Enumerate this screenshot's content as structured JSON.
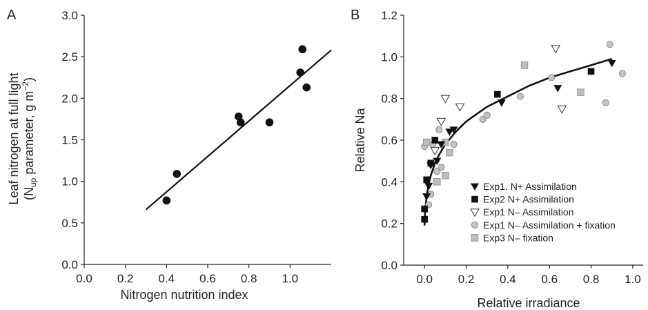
{
  "chart_data": [
    {
      "type": "scatter",
      "panel": "A",
      "title": "",
      "xlabel": "Nitrogen nutrition index",
      "ylabel_line1": "Leaf nitrogen at full light",
      "ylabel_line2_pre": "(N",
      "ylabel_line2_sub": "up",
      "ylabel_line2_mid": " parameter, g m",
      "ylabel_line2_sup": "−2",
      "ylabel_line2_post": ")",
      "xlim": [
        0.0,
        1.2
      ],
      "ylim": [
        0.0,
        3.0
      ],
      "xticks": [
        "0.0",
        "0.2",
        "0.4",
        "0.6",
        "0.8",
        "1.0"
      ],
      "yticks": [
        "0.0",
        "0.5",
        "1.0",
        "1.5",
        "2.0",
        "2.5",
        "3.0"
      ],
      "points": [
        {
          "x": 0.4,
          "y": 0.77
        },
        {
          "x": 0.45,
          "y": 1.09
        },
        {
          "x": 0.75,
          "y": 1.78
        },
        {
          "x": 0.76,
          "y": 1.71
        },
        {
          "x": 0.9,
          "y": 1.71
        },
        {
          "x": 1.05,
          "y": 2.31
        },
        {
          "x": 1.06,
          "y": 2.59
        },
        {
          "x": 1.08,
          "y": 2.13
        }
      ],
      "fit_line": [
        {
          "x": 0.3,
          "y": 0.66
        },
        {
          "x": 1.2,
          "y": 2.58
        }
      ]
    },
    {
      "type": "scatter",
      "panel": "B",
      "title": "",
      "xlabel": "Relative irradiance",
      "ylabel": "Relative Na",
      "xlim": [
        -0.1,
        1.05
      ],
      "ylim": [
        0.0,
        1.2
      ],
      "xticks": [
        "0.0",
        "0.2",
        "0.4",
        "0.6",
        "0.8",
        "1.0"
      ],
      "yticks": [
        "0.0",
        "0.2",
        "0.4",
        "0.6",
        "0.8",
        "1.0",
        "1.2"
      ],
      "legend_position": "bottom-right",
      "series": [
        {
          "name": "Exp1. N+ Assimilation",
          "marker": "triangle-down-filled",
          "points": [
            {
              "x": 0.01,
              "y": 0.33
            },
            {
              "x": 0.02,
              "y": 0.38
            },
            {
              "x": 0.03,
              "y": 0.48
            },
            {
              "x": 0.06,
              "y": 0.5
            },
            {
              "x": 0.08,
              "y": 0.58
            },
            {
              "x": 0.12,
              "y": 0.64
            },
            {
              "x": 0.14,
              "y": 0.65
            },
            {
              "x": 0.37,
              "y": 0.78
            },
            {
              "x": 0.64,
              "y": 0.85
            },
            {
              "x": 0.9,
              "y": 0.97
            }
          ]
        },
        {
          "name": "Exp2 N+ Assimilation",
          "marker": "square-filled",
          "points": [
            {
              "x": 0.0,
              "y": 0.22
            },
            {
              "x": 0.0,
              "y": 0.27
            },
            {
              "x": 0.01,
              "y": 0.41
            },
            {
              "x": 0.03,
              "y": 0.49
            },
            {
              "x": 0.05,
              "y": 0.6
            },
            {
              "x": 0.35,
              "y": 0.82
            },
            {
              "x": 0.8,
              "y": 0.93
            }
          ]
        },
        {
          "name": "Exp1 N– Assimilation",
          "marker": "triangle-down-open",
          "points": [
            {
              "x": 0.05,
              "y": 0.55
            },
            {
              "x": 0.08,
              "y": 0.69
            },
            {
              "x": 0.1,
              "y": 0.8
            },
            {
              "x": 0.17,
              "y": 0.76
            },
            {
              "x": 0.63,
              "y": 1.04
            },
            {
              "x": 0.66,
              "y": 0.75
            }
          ]
        },
        {
          "name": "Exp1 N– Assimilation + fixation",
          "marker": "circle-gray",
          "points": [
            {
              "x": 0.0,
              "y": 0.57
            },
            {
              "x": 0.02,
              "y": 0.29
            },
            {
              "x": 0.03,
              "y": 0.34
            },
            {
              "x": 0.04,
              "y": 0.58
            },
            {
              "x": 0.06,
              "y": 0.45
            },
            {
              "x": 0.07,
              "y": 0.65
            },
            {
              "x": 0.08,
              "y": 0.47
            },
            {
              "x": 0.14,
              "y": 0.58
            },
            {
              "x": 0.28,
              "y": 0.7
            },
            {
              "x": 0.3,
              "y": 0.72
            },
            {
              "x": 0.46,
              "y": 0.81
            },
            {
              "x": 0.61,
              "y": 0.9
            },
            {
              "x": 0.87,
              "y": 0.78
            },
            {
              "x": 0.89,
              "y": 1.06
            },
            {
              "x": 0.95,
              "y": 0.92
            }
          ]
        },
        {
          "name": "Exp3 N– fixation",
          "marker": "square-gray",
          "points": [
            {
              "x": 0.01,
              "y": 0.59
            },
            {
              "x": 0.06,
              "y": 0.4
            },
            {
              "x": 0.1,
              "y": 0.43
            },
            {
              "x": 0.1,
              "y": 0.59
            },
            {
              "x": 0.12,
              "y": 0.54
            },
            {
              "x": 0.48,
              "y": 0.96
            },
            {
              "x": 0.75,
              "y": 0.83
            }
          ]
        }
      ],
      "fit_curve": [
        {
          "x": 0.0,
          "y": 0.19
        },
        {
          "x": 0.002,
          "y": 0.24
        },
        {
          "x": 0.005,
          "y": 0.28
        },
        {
          "x": 0.01,
          "y": 0.33
        },
        {
          "x": 0.02,
          "y": 0.39
        },
        {
          "x": 0.03,
          "y": 0.43
        },
        {
          "x": 0.05,
          "y": 0.49
        },
        {
          "x": 0.07,
          "y": 0.53
        },
        {
          "x": 0.1,
          "y": 0.58
        },
        {
          "x": 0.15,
          "y": 0.64
        },
        {
          "x": 0.2,
          "y": 0.69
        },
        {
          "x": 0.3,
          "y": 0.76
        },
        {
          "x": 0.4,
          "y": 0.81
        },
        {
          "x": 0.5,
          "y": 0.86
        },
        {
          "x": 0.6,
          "y": 0.9
        },
        {
          "x": 0.7,
          "y": 0.93
        },
        {
          "x": 0.8,
          "y": 0.96
        },
        {
          "x": 0.9,
          "y": 0.99
        }
      ]
    }
  ]
}
